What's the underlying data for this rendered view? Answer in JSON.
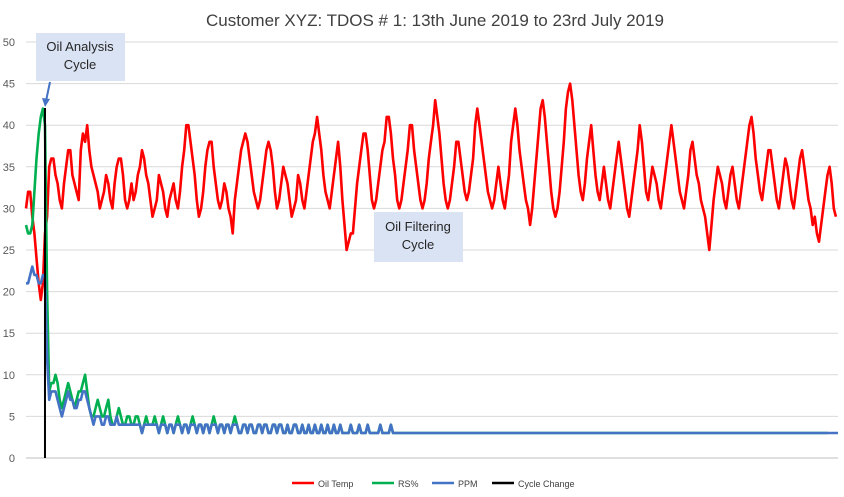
{
  "chart_data": {
    "type": "line",
    "title": "Customer XYZ: TDOS # 1: 13th June 2019 to 23rd July 2019",
    "xlabel": "",
    "ylabel": "",
    "ylim": [
      0,
      50
    ],
    "yticks": [
      0,
      5,
      10,
      15,
      20,
      25,
      30,
      35,
      40,
      45,
      50
    ],
    "grid": true,
    "legend_position": "bottom",
    "cycle_change_x": 9,
    "series": [
      {
        "name": "Oil Temp",
        "color": "#ff0000",
        "values": [
          30,
          32,
          32,
          29,
          27,
          24,
          21,
          19,
          21,
          27,
          29,
          35,
          36,
          36,
          34,
          33,
          31,
          30,
          33,
          35,
          37,
          37,
          34,
          33,
          32,
          31,
          37,
          39,
          38,
          40,
          37,
          35,
          34,
          33,
          32,
          30,
          31,
          32,
          34,
          33,
          31,
          30,
          33,
          35,
          36,
          36,
          34,
          31,
          30,
          31,
          33,
          31,
          32,
          34,
          35,
          37,
          36,
          34,
          33,
          31,
          29,
          30,
          31,
          34,
          33,
          32,
          30,
          29,
          31,
          32,
          33,
          31,
          30,
          32,
          35,
          37,
          40,
          40,
          38,
          36,
          34,
          31,
          29,
          30,
          32,
          35,
          37,
          38,
          38,
          35,
          33,
          31,
          30,
          31,
          33,
          32,
          30,
          29,
          27,
          31,
          33,
          35,
          37,
          38,
          39,
          38,
          36,
          34,
          32,
          31,
          30,
          31,
          33,
          35,
          37,
          38,
          37,
          35,
          32,
          30,
          31,
          33,
          35,
          34,
          33,
          31,
          29,
          30,
          31,
          34,
          33,
          31,
          30,
          32,
          34,
          36,
          38,
          39,
          41,
          39,
          37,
          34,
          32,
          31,
          30,
          32,
          34,
          36,
          38,
          35,
          31,
          28,
          25,
          26,
          27,
          27,
          30,
          33,
          35,
          37,
          39,
          39,
          37,
          34,
          31,
          30,
          31,
          33,
          35,
          37,
          38,
          41,
          41,
          39,
          36,
          34,
          31,
          30,
          31,
          33,
          35,
          37,
          40,
          40,
          37,
          35,
          33,
          31,
          30,
          31,
          33,
          36,
          38,
          40,
          43,
          41,
          39,
          36,
          33,
          31,
          30,
          31,
          33,
          35,
          38,
          38,
          36,
          34,
          32,
          31,
          32,
          34,
          36,
          40,
          42,
          40,
          38,
          36,
          34,
          32,
          31,
          30,
          31,
          33,
          35,
          33,
          31,
          30,
          32,
          34,
          38,
          40,
          42,
          40,
          37,
          35,
          33,
          31,
          30,
          28,
          30,
          33,
          36,
          39,
          42,
          43,
          41,
          38,
          35,
          32,
          30,
          29,
          30,
          32,
          35,
          38,
          42,
          44,
          45,
          43,
          40,
          37,
          34,
          32,
          31,
          33,
          36,
          38,
          40,
          37,
          34,
          32,
          31,
          33,
          35,
          33,
          31,
          30,
          32,
          34,
          36,
          38,
          36,
          34,
          32,
          30,
          29,
          31,
          33,
          35,
          37,
          40,
          38,
          35,
          32,
          31,
          33,
          35,
          34,
          33,
          31,
          30,
          32,
          34,
          36,
          38,
          40,
          38,
          36,
          34,
          32,
          31,
          30,
          32,
          34,
          37,
          38,
          36,
          34,
          33,
          31,
          30,
          29,
          27,
          25,
          28,
          31,
          33,
          35,
          34,
          33,
          31,
          30,
          32,
          34,
          35,
          33,
          31,
          30,
          32,
          34,
          36,
          38,
          40,
          41,
          39,
          36,
          34,
          32,
          31,
          33,
          35,
          37,
          37,
          35,
          33,
          31,
          30,
          32,
          34,
          36,
          35,
          33,
          31,
          30,
          32,
          34,
          36,
          37,
          35,
          33,
          31,
          30,
          28,
          29,
          27,
          26,
          28,
          30,
          32,
          34,
          35,
          33,
          30,
          29
        ]
      },
      {
        "name": "RS%",
        "color": "#00b050",
        "values": [
          28,
          27,
          27,
          28,
          32,
          36,
          39,
          41,
          42,
          40,
          20,
          8,
          9,
          9,
          10,
          9,
          7,
          6,
          7,
          8,
          9,
          8,
          7,
          6,
          7,
          8,
          8,
          9,
          10,
          8,
          6,
          5,
          5,
          6,
          7,
          6,
          5,
          5,
          6,
          7,
          5,
          4,
          4,
          5,
          6,
          5,
          4,
          4,
          5,
          5,
          4,
          4,
          5,
          5,
          4,
          3,
          4,
          5,
          4,
          4,
          4,
          5,
          4,
          3,
          4,
          5,
          4,
          3,
          4,
          4,
          3,
          4,
          5,
          4,
          3,
          4,
          4,
          3,
          4,
          5,
          4,
          3,
          4,
          4,
          3,
          4,
          4,
          3,
          4,
          5,
          4,
          3,
          4,
          4,
          3,
          4,
          4,
          3,
          4,
          5,
          4,
          3,
          3,
          4,
          4,
          3,
          4,
          4,
          3,
          3,
          4,
          4,
          3,
          4,
          4,
          3,
          3,
          4,
          4,
          3,
          4,
          4,
          3,
          3,
          4,
          3,
          3,
          4,
          4,
          3,
          3,
          4,
          3,
          3,
          4,
          3,
          3,
          4,
          3,
          3,
          4,
          3,
          3,
          4,
          3,
          3,
          4,
          3,
          3,
          4,
          3,
          3,
          3,
          3,
          4,
          3,
          3,
          3,
          4,
          3,
          3,
          3,
          4,
          3,
          3,
          3,
          3,
          3,
          4,
          3,
          3,
          3,
          3,
          4,
          3,
          3,
          3,
          3,
          3,
          3,
          3,
          3,
          3,
          3,
          3,
          3,
          3,
          3,
          3,
          3,
          3,
          3,
          3,
          3,
          3,
          3,
          3,
          3,
          3,
          3,
          3,
          3,
          3,
          3,
          3,
          3,
          3,
          3,
          3,
          3,
          3,
          3,
          3,
          3,
          3,
          3,
          3,
          3,
          3,
          3,
          3,
          3,
          3,
          3,
          3,
          3,
          3,
          3,
          3,
          3,
          3,
          3,
          3,
          3,
          3,
          3,
          3,
          3,
          3,
          3,
          3,
          3,
          3,
          3,
          3,
          3,
          3,
          3,
          3,
          3,
          3,
          3,
          3,
          3,
          3,
          3,
          3,
          3,
          3,
          3,
          3,
          3,
          3,
          3,
          3,
          3,
          3,
          3,
          3,
          3,
          3,
          3,
          3,
          3,
          3,
          3,
          3,
          3,
          3,
          3,
          3,
          3,
          3,
          3,
          3,
          3,
          3,
          3,
          3,
          3,
          3,
          3,
          3,
          3,
          3,
          3,
          3,
          3,
          3,
          3,
          3,
          3,
          3,
          3,
          3,
          3,
          3,
          3,
          3,
          3,
          3,
          3,
          3,
          3,
          3,
          3,
          3,
          3,
          3,
          3,
          3,
          3,
          3,
          3,
          3,
          3,
          3,
          3,
          3,
          3,
          3,
          3,
          3,
          3,
          3,
          3,
          3,
          3,
          3,
          3,
          3,
          3,
          3,
          3,
          3,
          3,
          3,
          3,
          3,
          3,
          3,
          3,
          3,
          3,
          3,
          3,
          3,
          3,
          3,
          3,
          3,
          3,
          3,
          3,
          3,
          3,
          3,
          3,
          3,
          3,
          3,
          3,
          3,
          3,
          3,
          3,
          3,
          3,
          3,
          3,
          3
        ]
      },
      {
        "name": "PPM",
        "color": "#4472c4",
        "values": [
          21,
          21,
          22,
          23,
          22,
          22,
          21,
          21,
          22,
          22,
          12,
          7,
          8,
          8,
          8,
          7,
          6,
          5,
          6,
          7,
          8,
          7,
          7,
          6,
          6,
          7,
          7,
          8,
          8,
          7,
          6,
          5,
          4,
          5,
          5,
          5,
          4,
          4,
          5,
          5,
          4,
          4,
          4,
          5,
          4,
          4,
          4,
          4,
          4,
          4,
          4,
          4,
          4,
          4,
          4,
          3,
          4,
          4,
          4,
          4,
          4,
          4,
          4,
          3,
          4,
          4,
          4,
          3,
          4,
          4,
          3,
          4,
          4,
          4,
          3,
          4,
          4,
          3,
          4,
          4,
          4,
          3,
          4,
          4,
          3,
          4,
          4,
          3,
          4,
          4,
          4,
          3,
          4,
          4,
          3,
          4,
          4,
          3,
          4,
          4,
          4,
          3,
          3,
          4,
          4,
          3,
          4,
          4,
          3,
          3,
          4,
          4,
          3,
          4,
          4,
          3,
          3,
          4,
          4,
          3,
          4,
          4,
          3,
          3,
          4,
          3,
          3,
          4,
          4,
          3,
          3,
          4,
          3,
          3,
          4,
          3,
          3,
          4,
          3,
          3,
          4,
          3,
          3,
          4,
          3,
          3,
          4,
          3,
          3,
          4,
          3,
          3,
          3,
          3,
          4,
          3,
          3,
          3,
          4,
          3,
          3,
          3,
          4,
          3,
          3,
          3,
          3,
          3,
          4,
          3,
          3,
          3,
          3,
          4,
          3,
          3,
          3,
          3,
          3,
          3,
          3,
          3,
          3,
          3,
          3,
          3,
          3,
          3,
          3,
          3,
          3,
          3,
          3,
          3,
          3,
          3,
          3,
          3,
          3,
          3,
          3,
          3,
          3,
          3,
          3,
          3,
          3,
          3,
          3,
          3,
          3,
          3,
          3,
          3,
          3,
          3,
          3,
          3,
          3,
          3,
          3,
          3,
          3,
          3,
          3,
          3,
          3,
          3,
          3,
          3,
          3,
          3,
          3,
          3,
          3,
          3,
          3,
          3,
          3,
          3,
          3,
          3,
          3,
          3,
          3,
          3,
          3,
          3,
          3,
          3,
          3,
          3,
          3,
          3,
          3,
          3,
          3,
          3,
          3,
          3,
          3,
          3,
          3,
          3,
          3,
          3,
          3,
          3,
          3,
          3,
          3,
          3,
          3,
          3,
          3,
          3,
          3,
          3,
          3,
          3,
          3,
          3,
          3,
          3,
          3,
          3,
          3,
          3,
          3,
          3,
          3,
          3,
          3,
          3,
          3,
          3,
          3,
          3,
          3,
          3,
          3,
          3,
          3,
          3,
          3,
          3,
          3,
          3,
          3,
          3,
          3,
          3,
          3,
          3,
          3,
          3,
          3,
          3,
          3,
          3,
          3,
          3,
          3,
          3,
          3,
          3,
          3,
          3,
          3,
          3,
          3,
          3,
          3,
          3,
          3,
          3,
          3,
          3,
          3,
          3,
          3,
          3,
          3,
          3,
          3,
          3,
          3,
          3,
          3,
          3,
          3,
          3,
          3,
          3,
          3,
          3,
          3,
          3,
          3,
          3,
          3,
          3,
          3,
          3,
          3,
          3,
          3,
          3,
          3,
          3,
          3,
          3,
          3,
          3,
          3,
          3,
          3,
          3,
          3,
          3,
          3,
          3,
          3,
          3,
          3,
          3
        ]
      },
      {
        "name": "Cycle Change",
        "color": "#000000",
        "values": []
      }
    ],
    "annotations": [
      {
        "id": "oil-analysis",
        "lines": [
          "Oil Analysis",
          "Cycle"
        ],
        "arrow_to": {
          "x": 7,
          "y": 42
        }
      },
      {
        "id": "oil-filtering",
        "lines": [
          "Oil Filtering",
          "Cycle"
        ]
      }
    ]
  }
}
